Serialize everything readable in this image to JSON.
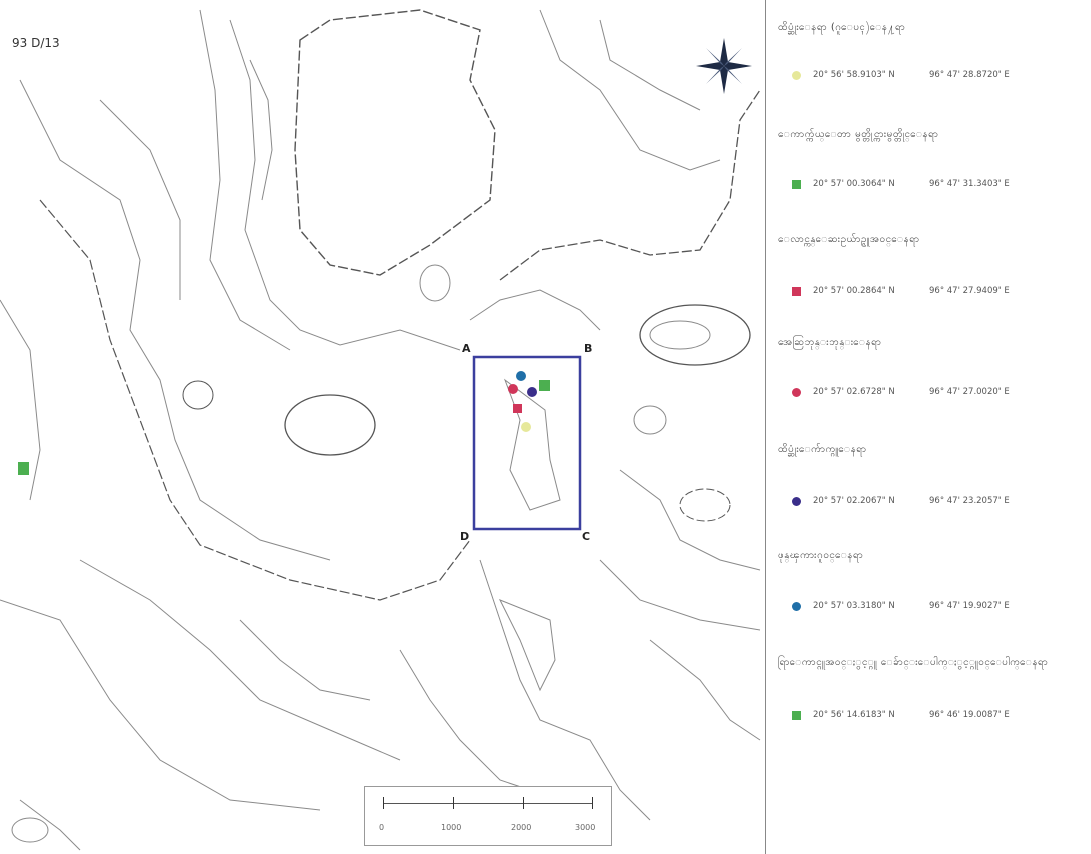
{
  "map": {
    "sheet_label": "93 D/13",
    "corner_labels": {
      "a": "A",
      "b": "B",
      "c": "C",
      "d": "D"
    },
    "study_area_color": "#3b3f9e"
  },
  "legend": {
    "items": [
      {
        "title": "ထိပ္ဆုံးေနရာ (ဂူေပၚ)ေန႔ရာ",
        "symbol": "circle",
        "color": "#e6e89a",
        "lat": "20° 56' 58.9103\" N",
        "lon": "96° 47' 28.8720\" E"
      },
      {
        "title": "ေကာက္က်ယ္ေတာ မွတ္တိုင္ကားမွတ္တိုင္ေနရာ",
        "symbol": "square",
        "color": "#4caf50",
        "lat": "20° 57' 00.3064\" N",
        "lon": "96° 47' 31.3403\" E"
      },
      {
        "title": "ေလာင္ကန္ေဆးဥယ်ာဥ္ဂူအဝင္ေနရာ",
        "symbol": "square",
        "color": "#d0365a",
        "lat": "20° 57' 00.2864\" N",
        "lon": "96° 47' 27.9409\" E"
      },
      {
        "title": "အေဆြဘုန္းဘုန္းေနရာ",
        "symbol": "circle",
        "color": "#d0365a",
        "lat": "20° 57' 02.6728\" N",
        "lon": "96° 47' 27.0020\" E"
      },
      {
        "title": "ထိပ္ဆုံးေက်ာက္ဂူေနရာ",
        "symbol": "circle",
        "color": "#3a2e8a",
        "lat": "20° 57' 02.2067\" N",
        "lon": "96° 47' 23.2057\" E"
      },
      {
        "title": "ဖုန္ၾကားဂူဝင္ေနရာ",
        "symbol": "circle",
        "color": "#1f6fa8",
        "lat": "20° 57' 03.3180\" N",
        "lon": "96° 47' 19.9027\" E"
      },
      {
        "title": "ရြာေကာင္ဂူအဝင္ႏွင့္ဂူ ေခ်ာင္းေပါက္ႏွင့္ဂူဝင္ေပါက္ေနရာ",
        "symbol": "square",
        "color": "#4caf50",
        "lat": "20° 56' 14.6183\" N",
        "lon": "96° 46' 19.0087\" E"
      }
    ]
  },
  "scale_bar": {
    "ticks": [
      "0",
      "1000",
      "2000",
      "3000"
    ]
  }
}
